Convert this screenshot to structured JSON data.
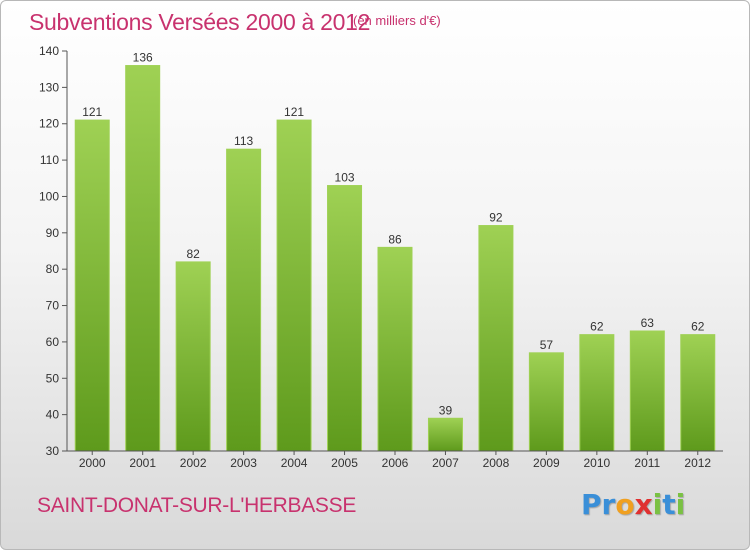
{
  "header": {
    "title": "Subventions Versées 2000 à 2012",
    "unit": "(en milliers d'€)"
  },
  "footer": {
    "commune": "SAINT-DONAT-SUR-L'HERBASSE",
    "logo_letters": [
      "P",
      "r",
      "o",
      "x",
      "i",
      "t",
      "i"
    ],
    "logo_colors": [
      "#3a8fd8",
      "#3a8fd8",
      "#f0a020",
      "#e03030",
      "#7ac143",
      "#3a8fd8",
      "#7ac143"
    ]
  },
  "chart_data": {
    "type": "bar",
    "categories": [
      "2000",
      "2001",
      "2002",
      "2003",
      "2004",
      "2005",
      "2006",
      "2007",
      "2008",
      "2009",
      "2010",
      "2011",
      "2012"
    ],
    "values": [
      121,
      136,
      82,
      113,
      121,
      103,
      86,
      39,
      92,
      57,
      62,
      63,
      62
    ],
    "ylim": [
      30,
      140
    ],
    "yticks": [
      30,
      40,
      50,
      60,
      70,
      80,
      90,
      100,
      110,
      120,
      130,
      140
    ],
    "grid": false,
    "legend": "none",
    "bar_color": "#7ab82e",
    "bar_color_light": "#9fd154",
    "bar_color_dark": "#5e9a1c"
  }
}
